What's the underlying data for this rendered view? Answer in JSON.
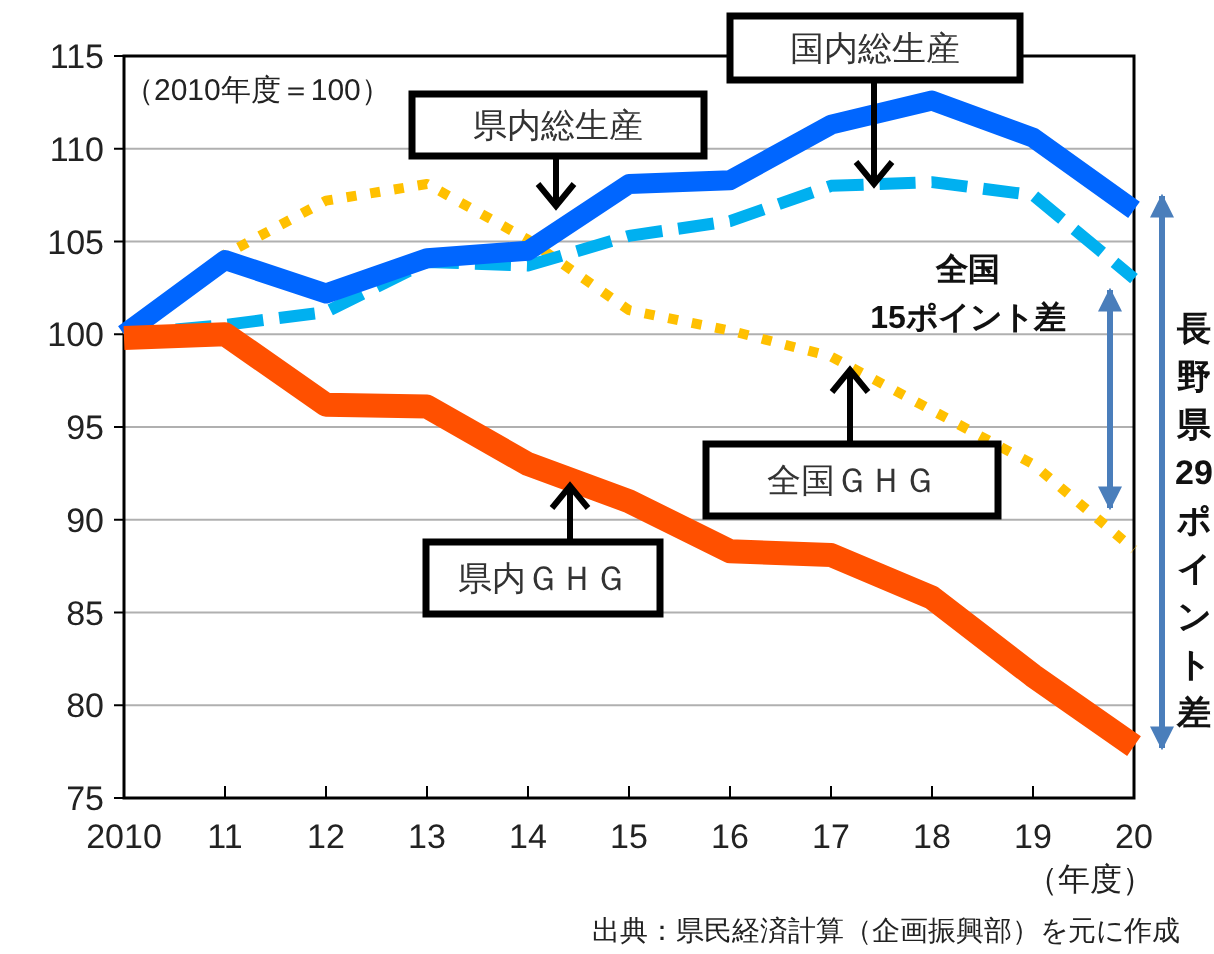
{
  "chart_data": {
    "type": "line",
    "x": [
      2010,
      2011,
      2012,
      2013,
      2014,
      2015,
      2016,
      2017,
      2018,
      2019,
      2020
    ],
    "xlim": [
      2010,
      2020
    ],
    "xticks": [
      2010,
      {
        "value": 2011,
        "label": "11"
      },
      {
        "value": 2012,
        "label": "12"
      },
      {
        "value": 2013,
        "label": "13"
      },
      {
        "value": 2014,
        "label": "14"
      },
      {
        "value": 2015,
        "label": "15"
      },
      {
        "value": 2016,
        "label": "16"
      },
      {
        "value": 2017,
        "label": "17"
      },
      {
        "value": 2018,
        "label": "18"
      },
      {
        "value": 2019,
        "label": "19"
      },
      {
        "value": 2020,
        "label": "20"
      }
    ],
    "ylim": [
      75,
      115
    ],
    "yticks": [
      75,
      80,
      85,
      90,
      95,
      100,
      105,
      110,
      115
    ],
    "grid": "y",
    "legend": false,
    "marker": "none",
    "series": [
      {
        "name": "県内総生産",
        "color": "#0066ff",
        "line_style": "solid",
        "values": [
          100,
          104.0,
          102.2,
          104.1,
          104.5,
          108.1,
          108.3,
          111.3,
          112.6,
          110.6,
          106.7
        ]
      },
      {
        "name": "国内総生産",
        "color": "#00b0f0",
        "line_style": "dashed",
        "values": [
          100,
          100.5,
          101.2,
          103.9,
          103.7,
          105.3,
          106.1,
          108.0,
          108.2,
          107.5,
          103.0
        ]
      },
      {
        "name": "全国ＧＨＧ",
        "color": "#ffc000",
        "line_style": "dotted",
        "values": [
          100,
          104.3,
          107.2,
          108.1,
          105.1,
          101.3,
          100.2,
          98.8,
          95.9,
          93.0,
          88.4
        ]
      },
      {
        "name": "県内ＧＨＧ",
        "color": "#ff5000",
        "line_style": "solid",
        "values": [
          99.8,
          100.0,
          96.2,
          96.1,
          93.0,
          91.0,
          88.3,
          88.1,
          85.8,
          81.6,
          77.8
        ]
      }
    ],
    "annotations": [
      "（2010年度＝100）",
      "全国\n15ポイント差",
      "長野県29ポイント差",
      "（年度）",
      "出典：県民経済計算（企画振興部）を元に作成"
    ]
  }
}
